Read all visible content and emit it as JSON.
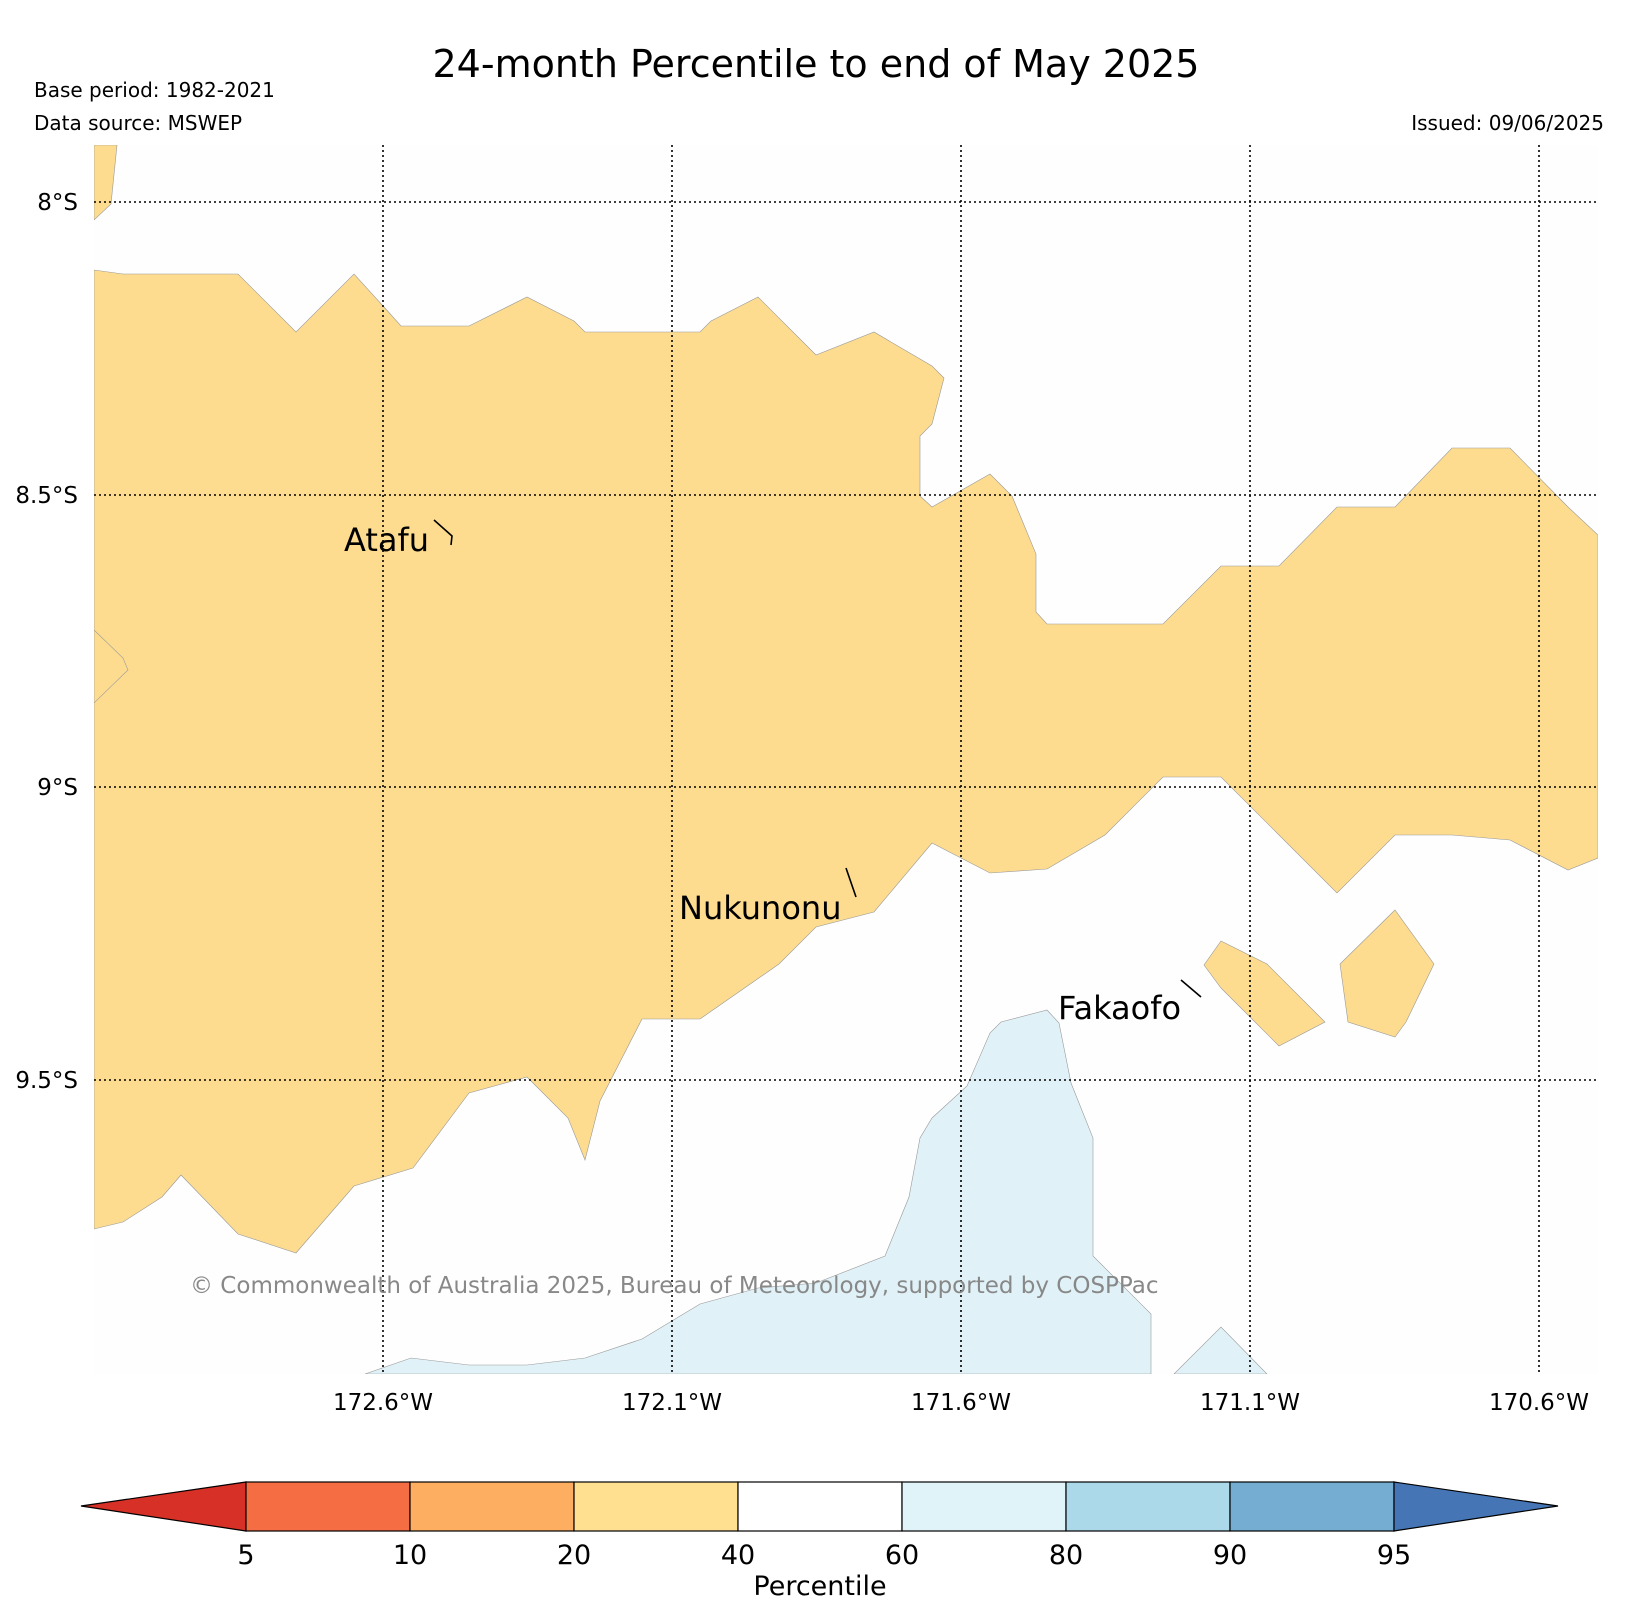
{
  "header": {
    "title": "24-month Percentile to end of May 2025",
    "base_period": "Base period: 1982-2021",
    "data_source": "Data source: MSWEP",
    "issued": "Issued: 09/06/2025"
  },
  "map": {
    "lat_labels": [
      "8°S",
      "8.5°S",
      "9°S",
      "9.5°S"
    ],
    "lon_labels": [
      "172.6°W",
      "172.1°W",
      "171.6°W",
      "171.1°W",
      "170.6°W"
    ],
    "places": [
      "Atafu",
      "Nukunonu",
      "Fakaofo"
    ],
    "fill_colors": {
      "p20_40": "#fddc90",
      "p60_80": "#e0f2f8",
      "p40_60": "#fefefe"
    },
    "copyright": "© Commonwealth of Australia 2025, Bureau of Meteorology, supported by COSPPac"
  },
  "colorbar": {
    "label": "Percentile",
    "ticks": [
      "5",
      "10",
      "20",
      "40",
      "60",
      "80",
      "90",
      "95"
    ],
    "colors": [
      "#d73027",
      "#f46d43",
      "#fdae61",
      "#fee090",
      "#ffffff",
      "#e0f3f8",
      "#abd9e9",
      "#74add1",
      "#4575b4"
    ]
  }
}
